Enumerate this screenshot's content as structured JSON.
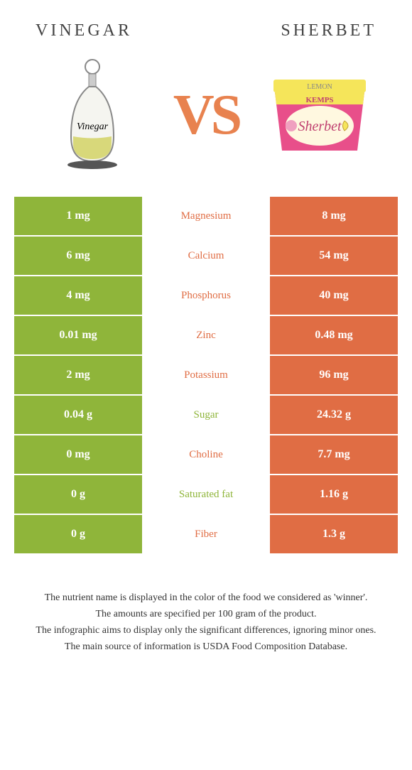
{
  "header": {
    "left_title": "VINEGAR",
    "right_title": "SHERBET"
  },
  "vs_label": "VS",
  "colors": {
    "vinegar": "#8fb53a",
    "sherbet": "#e06d44",
    "vs": "#e8824f",
    "title": "#444444",
    "footer": "#333333"
  },
  "vinegar_img": {
    "label": "Vinegar"
  },
  "sherbet_img": {
    "brand": "KEMPS",
    "product": "Sherbet",
    "flavor": "LEMON"
  },
  "rows": [
    {
      "left": "1 mg",
      "mid": "Magnesium",
      "right": "8 mg",
      "winner": "right"
    },
    {
      "left": "6 mg",
      "mid": "Calcium",
      "right": "54 mg",
      "winner": "right"
    },
    {
      "left": "4 mg",
      "mid": "Phosphorus",
      "right": "40 mg",
      "winner": "right"
    },
    {
      "left": "0.01 mg",
      "mid": "Zinc",
      "right": "0.48 mg",
      "winner": "right"
    },
    {
      "left": "2 mg",
      "mid": "Potassium",
      "right": "96 mg",
      "winner": "right"
    },
    {
      "left": "0.04 g",
      "mid": "Sugar",
      "right": "24.32 g",
      "winner": "left"
    },
    {
      "left": "0 mg",
      "mid": "Choline",
      "right": "7.7 mg",
      "winner": "right"
    },
    {
      "left": "0 g",
      "mid": "Saturated fat",
      "right": "1.16 g",
      "winner": "left"
    },
    {
      "left": "0 g",
      "mid": "Fiber",
      "right": "1.3 g",
      "winner": "right"
    }
  ],
  "footer": {
    "line1": "The nutrient name is displayed in the color of the food we considered as 'winner'.",
    "line2": "The amounts are specified per 100 gram of the product.",
    "line3": "The infographic aims to display only the significant differences, ignoring minor ones.",
    "line4": "The main source of information is USDA Food Composition Database."
  }
}
